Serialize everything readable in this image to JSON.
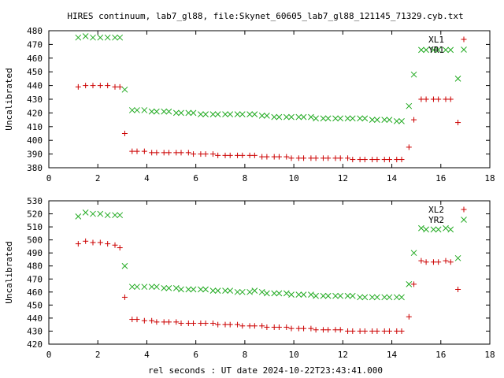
{
  "title": "HIRES continuum, lab7_gl88, file:Skynet_60605_lab7_gl88_121145_71329.cyb.txt",
  "xlabel": "rel seconds : UT date 2024-10-22T23:43:41.000",
  "colors": {
    "series_a": "#cc0000",
    "series_b": "#22aa22",
    "axes": "#000000"
  },
  "chart_data": [
    {
      "type": "scatter",
      "ylabel": "Uncalibrated",
      "xlim": [
        0,
        18
      ],
      "ylim": [
        380,
        480
      ],
      "xticks": [
        0,
        2,
        4,
        6,
        8,
        10,
        12,
        14,
        16,
        18
      ],
      "yticks": [
        380,
        390,
        400,
        410,
        420,
        430,
        440,
        450,
        460,
        470,
        480
      ],
      "legend_position": "top-right",
      "series": [
        {
          "name": "XL1",
          "marker": "plus",
          "color": "#cc0000",
          "x": [
            1.2,
            1.5,
            1.8,
            2.1,
            2.4,
            2.7,
            2.9,
            3.1,
            3.4,
            3.6,
            3.9,
            4.2,
            4.4,
            4.7,
            4.9,
            5.2,
            5.4,
            5.7,
            5.9,
            6.2,
            6.4,
            6.7,
            6.9,
            7.2,
            7.4,
            7.7,
            7.9,
            8.2,
            8.4,
            8.7,
            8.9,
            9.2,
            9.4,
            9.7,
            9.9,
            10.2,
            10.4,
            10.7,
            10.9,
            11.2,
            11.4,
            11.7,
            11.9,
            12.2,
            12.4,
            12.7,
            12.9,
            13.2,
            13.4,
            13.7,
            13.9,
            14.2,
            14.4,
            14.7,
            14.9,
            15.2,
            15.4,
            15.7,
            15.9,
            16.2,
            16.4,
            16.7
          ],
          "y": [
            439,
            440,
            440,
            440,
            440,
            439,
            439,
            405,
            392,
            392,
            392,
            391,
            391,
            391,
            391,
            391,
            391,
            391,
            390,
            390,
            390,
            390,
            389,
            389,
            389,
            389,
            389,
            389,
            389,
            388,
            388,
            388,
            388,
            388,
            387,
            387,
            387,
            387,
            387,
            387,
            387,
            387,
            387,
            387,
            386,
            386,
            386,
            386,
            386,
            386,
            386,
            386,
            386,
            395,
            415,
            430,
            430,
            430,
            430,
            430,
            430,
            413
          ]
        },
        {
          "name": "YR1",
          "marker": "x",
          "color": "#22aa22",
          "x": [
            1.2,
            1.5,
            1.8,
            2.1,
            2.4,
            2.7,
            2.9,
            3.1,
            3.4,
            3.6,
            3.9,
            4.2,
            4.4,
            4.7,
            4.9,
            5.2,
            5.4,
            5.7,
            5.9,
            6.2,
            6.4,
            6.7,
            6.9,
            7.2,
            7.4,
            7.7,
            7.9,
            8.2,
            8.4,
            8.7,
            8.9,
            9.2,
            9.4,
            9.7,
            9.9,
            10.2,
            10.4,
            10.7,
            10.9,
            11.2,
            11.4,
            11.7,
            11.9,
            12.2,
            12.4,
            12.7,
            12.9,
            13.2,
            13.4,
            13.7,
            13.9,
            14.2,
            14.4,
            14.7,
            14.9,
            15.2,
            15.4,
            15.7,
            15.9,
            16.2,
            16.4,
            16.7
          ],
          "y": [
            475,
            476,
            475,
            475,
            475,
            475,
            475,
            437,
            422,
            422,
            422,
            421,
            421,
            421,
            421,
            420,
            420,
            420,
            420,
            419,
            419,
            419,
            419,
            419,
            419,
            419,
            419,
            419,
            419,
            418,
            418,
            417,
            417,
            417,
            417,
            417,
            417,
            417,
            416,
            416,
            416,
            416,
            416,
            416,
            416,
            416,
            416,
            415,
            415,
            415,
            415,
            414,
            414,
            425,
            448,
            466,
            466,
            466,
            466,
            466,
            466,
            445
          ]
        }
      ]
    },
    {
      "type": "scatter",
      "ylabel": "Uncalibrated",
      "xlim": [
        0,
        18
      ],
      "ylim": [
        420,
        530
      ],
      "xticks": [
        0,
        2,
        4,
        6,
        8,
        10,
        12,
        14,
        16,
        18
      ],
      "yticks": [
        420,
        430,
        440,
        450,
        460,
        470,
        480,
        490,
        500,
        510,
        520,
        530
      ],
      "legend_position": "top-right",
      "series": [
        {
          "name": "XL2",
          "marker": "plus",
          "color": "#cc0000",
          "x": [
            1.2,
            1.5,
            1.8,
            2.1,
            2.4,
            2.7,
            2.9,
            3.1,
            3.4,
            3.6,
            3.9,
            4.2,
            4.4,
            4.7,
            4.9,
            5.2,
            5.4,
            5.7,
            5.9,
            6.2,
            6.4,
            6.7,
            6.9,
            7.2,
            7.4,
            7.7,
            7.9,
            8.2,
            8.4,
            8.7,
            8.9,
            9.2,
            9.4,
            9.7,
            9.9,
            10.2,
            10.4,
            10.7,
            10.9,
            11.2,
            11.4,
            11.7,
            11.9,
            12.2,
            12.4,
            12.7,
            12.9,
            13.2,
            13.4,
            13.7,
            13.9,
            14.2,
            14.4,
            14.7,
            14.9,
            15.2,
            15.4,
            15.7,
            15.9,
            16.2,
            16.4,
            16.7
          ],
          "y": [
            497,
            499,
            498,
            498,
            497,
            496,
            494,
            456,
            439,
            439,
            438,
            438,
            437,
            437,
            437,
            437,
            436,
            436,
            436,
            436,
            436,
            436,
            435,
            435,
            435,
            435,
            434,
            434,
            434,
            434,
            433,
            433,
            433,
            433,
            432,
            432,
            432,
            432,
            431,
            431,
            431,
            431,
            431,
            430,
            430,
            430,
            430,
            430,
            430,
            430,
            430,
            430,
            430,
            441,
            466,
            484,
            483,
            483,
            483,
            484,
            483,
            462
          ]
        },
        {
          "name": "YR2",
          "marker": "x",
          "color": "#22aa22",
          "x": [
            1.2,
            1.5,
            1.8,
            2.1,
            2.4,
            2.7,
            2.9,
            3.1,
            3.4,
            3.6,
            3.9,
            4.2,
            4.4,
            4.7,
            4.9,
            5.2,
            5.4,
            5.7,
            5.9,
            6.2,
            6.4,
            6.7,
            6.9,
            7.2,
            7.4,
            7.7,
            7.9,
            8.2,
            8.4,
            8.7,
            8.9,
            9.2,
            9.4,
            9.7,
            9.9,
            10.2,
            10.4,
            10.7,
            10.9,
            11.2,
            11.4,
            11.7,
            11.9,
            12.2,
            12.4,
            12.7,
            12.9,
            13.2,
            13.4,
            13.7,
            13.9,
            14.2,
            14.4,
            14.7,
            14.9,
            15.2,
            15.4,
            15.7,
            15.9,
            16.2,
            16.4,
            16.7
          ],
          "y": [
            518,
            521,
            520,
            520,
            519,
            519,
            519,
            480,
            464,
            464,
            464,
            464,
            464,
            463,
            463,
            463,
            462,
            462,
            462,
            462,
            462,
            461,
            461,
            461,
            461,
            460,
            460,
            460,
            461,
            460,
            459,
            459,
            459,
            459,
            458,
            458,
            458,
            458,
            457,
            457,
            457,
            457,
            457,
            457,
            457,
            456,
            456,
            456,
            456,
            456,
            456,
            456,
            456,
            466,
            490,
            509,
            508,
            508,
            508,
            509,
            508,
            486
          ]
        }
      ]
    }
  ]
}
